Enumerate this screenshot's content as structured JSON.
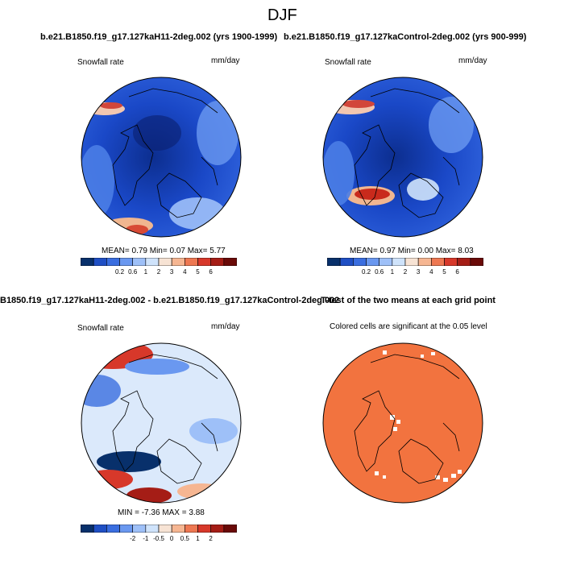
{
  "page_title": "DJF",
  "chart_data": [
    {
      "type": "heatmap",
      "title": "b.e21.B1850.f19_g17.127kaH11-2deg.002 (yrs 1900-1999)",
      "field_label": "Snowfall rate",
      "units": "mm/day",
      "stats_text": "MEAN=   0.79  Min=   0.07  Max=   5.77",
      "stats": {
        "mean": 0.79,
        "min": 0.07,
        "max": 5.77
      },
      "colorbar": {
        "levels": [
          0.2,
          0.6,
          1,
          2,
          3,
          4,
          5,
          6
        ],
        "tick_labels": [
          "0.2",
          "0.6",
          "1",
          "2",
          "3",
          "4",
          "5",
          "6"
        ],
        "colors": [
          "#08306b",
          "#1f4fc4",
          "#3a6ee0",
          "#6a98f0",
          "#9ec0f8",
          "#cfe3fb",
          "#f7e3d4",
          "#f6b692",
          "#ee7852",
          "#d7382a",
          "#a51d16",
          "#6a0a08"
        ]
      }
    },
    {
      "type": "heatmap",
      "title": "b.e21.B1850.f19_g17.127kaControl-2deg.002 (yrs 900-999)",
      "field_label": "Snowfall rate",
      "units": "mm/day",
      "stats_text": "MEAN=   0.97  Min=   0.00  Max=   8.03",
      "stats": {
        "mean": 0.97,
        "min": 0.0,
        "max": 8.03
      },
      "colorbar": {
        "levels": [
          0.2,
          0.6,
          1,
          2,
          3,
          4,
          5,
          6
        ],
        "tick_labels": [
          "0.2",
          "0.6",
          "1",
          "2",
          "3",
          "4",
          "5",
          "6"
        ],
        "colors": [
          "#08306b",
          "#1f4fc4",
          "#3a6ee0",
          "#6a98f0",
          "#9ec0f8",
          "#cfe3fb",
          "#f7e3d4",
          "#f6b692",
          "#ee7852",
          "#d7382a",
          "#a51d16",
          "#6a0a08"
        ]
      }
    },
    {
      "type": "heatmap",
      "title": "B1850.f19_g17.127kaH11-2deg.002 - b.e21.B1850.f19_g17.127kaControl-2deg.002",
      "field_label": "Snowfall rate",
      "units": "mm/day",
      "stats_text": "MIN =  -7.36 MAX =   3.88",
      "stats": {
        "min": -7.36,
        "max": 3.88
      },
      "colorbar": {
        "levels": [
          -2,
          -1,
          -0.5,
          0,
          0.5,
          1,
          2
        ],
        "tick_labels": [
          "-2",
          "-1",
          "-0.5",
          "0",
          "0.5",
          "1",
          "2"
        ],
        "colors": [
          "#08306b",
          "#1f4fc4",
          "#3a6ee0",
          "#6a98f0",
          "#9ec0f8",
          "#cfe3fb",
          "#f7e3d4",
          "#f6b692",
          "#ee7852",
          "#d7382a",
          "#a51d16",
          "#6a0a08"
        ]
      }
    },
    {
      "type": "heatmap",
      "title": "T-test of the two means at each grid point",
      "subtitle": "Colored cells are significant at the 0.05 level",
      "fill_color": "#f2733f"
    }
  ]
}
